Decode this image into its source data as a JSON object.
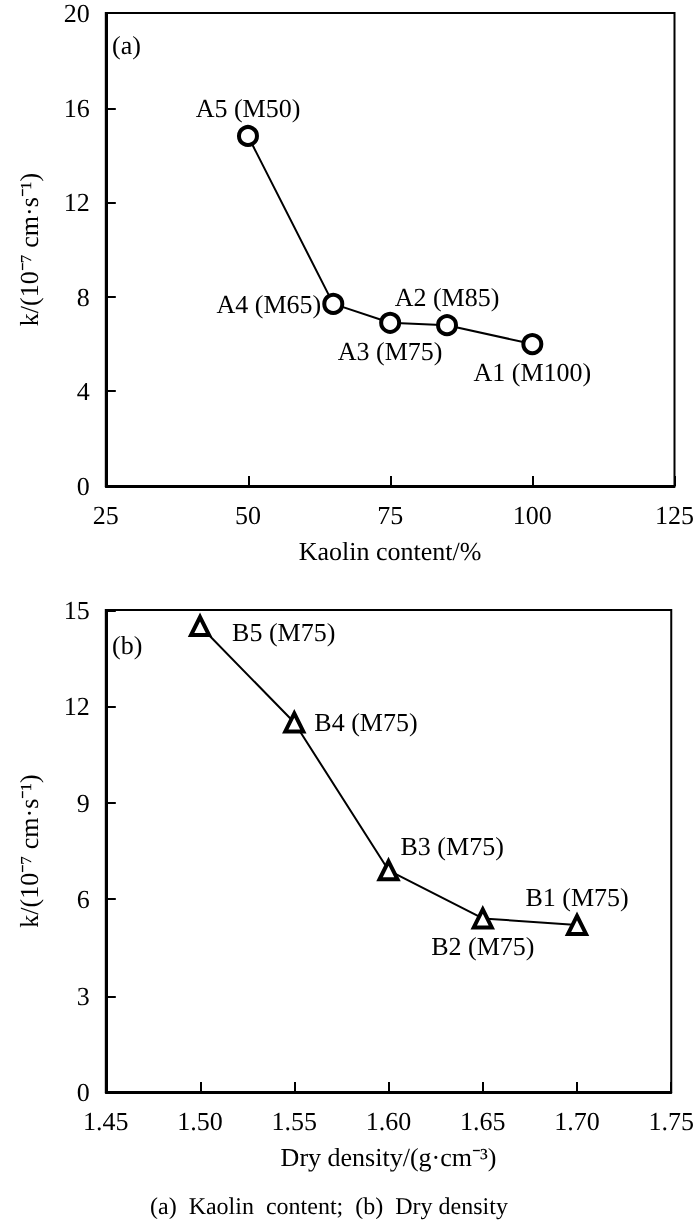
{
  "chart_data": [
    {
      "type": "line",
      "title": "(a)",
      "xlabel": "Kaolin content/%",
      "ylabel": "k/(10⁻⁷ cm·s⁻¹)",
      "x": [
        50,
        65,
        75,
        85,
        100
      ],
      "series": [
        {
          "color": "#000000",
          "values": [
            14.8,
            7.7,
            6.9,
            6.8,
            6.0
          ]
        }
      ],
      "xlim": [
        25,
        125
      ],
      "xticks": [
        25,
        50,
        75,
        100,
        125
      ],
      "ylim": [
        0,
        20
      ],
      "yticks": [
        0,
        4,
        8,
        12,
        16,
        20
      ],
      "marker": "circle",
      "line_style": "solid",
      "grid": false,
      "annotations": [
        {
          "text": "A5 (M50)",
          "x": 50,
          "y": 14.8
        },
        {
          "text": "A4 (M65)",
          "x": 65,
          "y": 7.7
        },
        {
          "text": "A3 (M75)",
          "x": 75,
          "y": 6.9
        },
        {
          "text": "A2 (M85)",
          "x": 85,
          "y": 6.8
        },
        {
          "text": "A1 (M100)",
          "x": 100,
          "y": 6.0
        }
      ]
    },
    {
      "type": "line",
      "title": "(b)",
      "xlabel": "Dry density/(g·cm⁻³)",
      "ylabel": "k/(10⁻⁷ cm·s⁻¹)",
      "x": [
        1.5,
        1.55,
        1.6,
        1.65,
        1.7
      ],
      "series": [
        {
          "color": "#000000",
          "values": [
            14.5,
            11.5,
            6.9,
            5.4,
            5.2
          ]
        }
      ],
      "xlim": [
        1.45,
        1.75
      ],
      "xticks": [
        {
          "value": 1.45,
          "label": "1.45"
        },
        {
          "value": 1.5,
          "label": "1.50"
        },
        {
          "value": 1.55,
          "label": "1.55"
        },
        {
          "value": 1.6,
          "label": "1.60"
        },
        {
          "value": 1.65,
          "label": "1.65"
        },
        {
          "value": 1.7,
          "label": "1.70"
        },
        {
          "value": 1.75,
          "label": "1.75"
        }
      ],
      "ylim": [
        0,
        15
      ],
      "yticks": [
        0,
        3,
        6,
        9,
        12,
        15
      ],
      "marker": "triangle",
      "line_style": "solid",
      "grid": false,
      "annotations": [
        {
          "text": "B5 (M75)",
          "x": 1.5,
          "y": 14.5
        },
        {
          "text": "B4 (M75)",
          "x": 1.55,
          "y": 11.5
        },
        {
          "text": "B3 (M75)",
          "x": 1.6,
          "y": 6.9
        },
        {
          "text": "B2 (M75)",
          "x": 1.65,
          "y": 5.4
        },
        {
          "text": "B1 (M75)",
          "x": 1.7,
          "y": 5.2
        },
        "(a)  Kaolin  content;  (b)  Dry density"
      ]
    }
  ]
}
